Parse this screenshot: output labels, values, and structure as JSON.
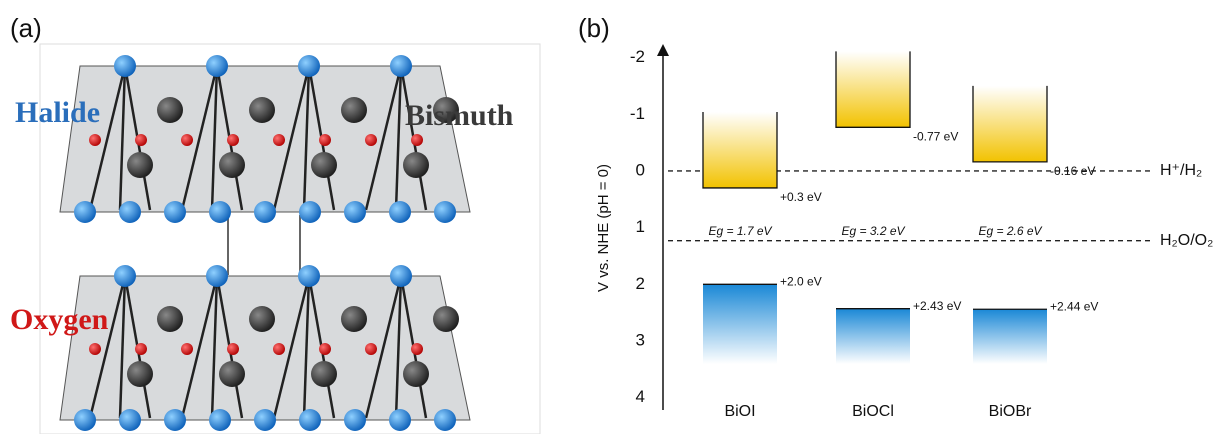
{
  "panel_a": {
    "label": "(a)",
    "halide": "Halide",
    "bismuth": "Bismuth",
    "oxygen": "Oxygen"
  },
  "chart_data": {
    "type": "band",
    "panel_label": "(b)",
    "ylabel": "V vs. NHE (pH = 0)",
    "categories": [
      "BiOI",
      "BiOCl",
      "BiOBr"
    ],
    "ylim": [
      4.2,
      -2.3
    ],
    "yticks": [
      -2,
      -1,
      0,
      1,
      2,
      3,
      4
    ],
    "cb": {
      "color": "#f2c200",
      "values": [
        0.3,
        -0.77,
        -0.16
      ],
      "value_labels": [
        "+0.3 eV",
        "-0.77 eV",
        "-0.16 eV"
      ]
    },
    "vb": {
      "color": "#1a88d6",
      "values": [
        2.0,
        2.43,
        2.44
      ],
      "value_labels": [
        "+2.0 eV",
        "+2.43 eV",
        "+2.44 eV"
      ]
    },
    "eg": {
      "values": [
        1.7,
        3.2,
        2.6
      ],
      "value_labels": [
        "Eg = 1.7 eV",
        "Eg = 3.2 eV",
        "Eg = 2.6 eV"
      ]
    },
    "references": [
      {
        "value": 0,
        "label": "H⁺/H₂"
      },
      {
        "value": 1.23,
        "label": "H₂O/O₂"
      }
    ]
  }
}
